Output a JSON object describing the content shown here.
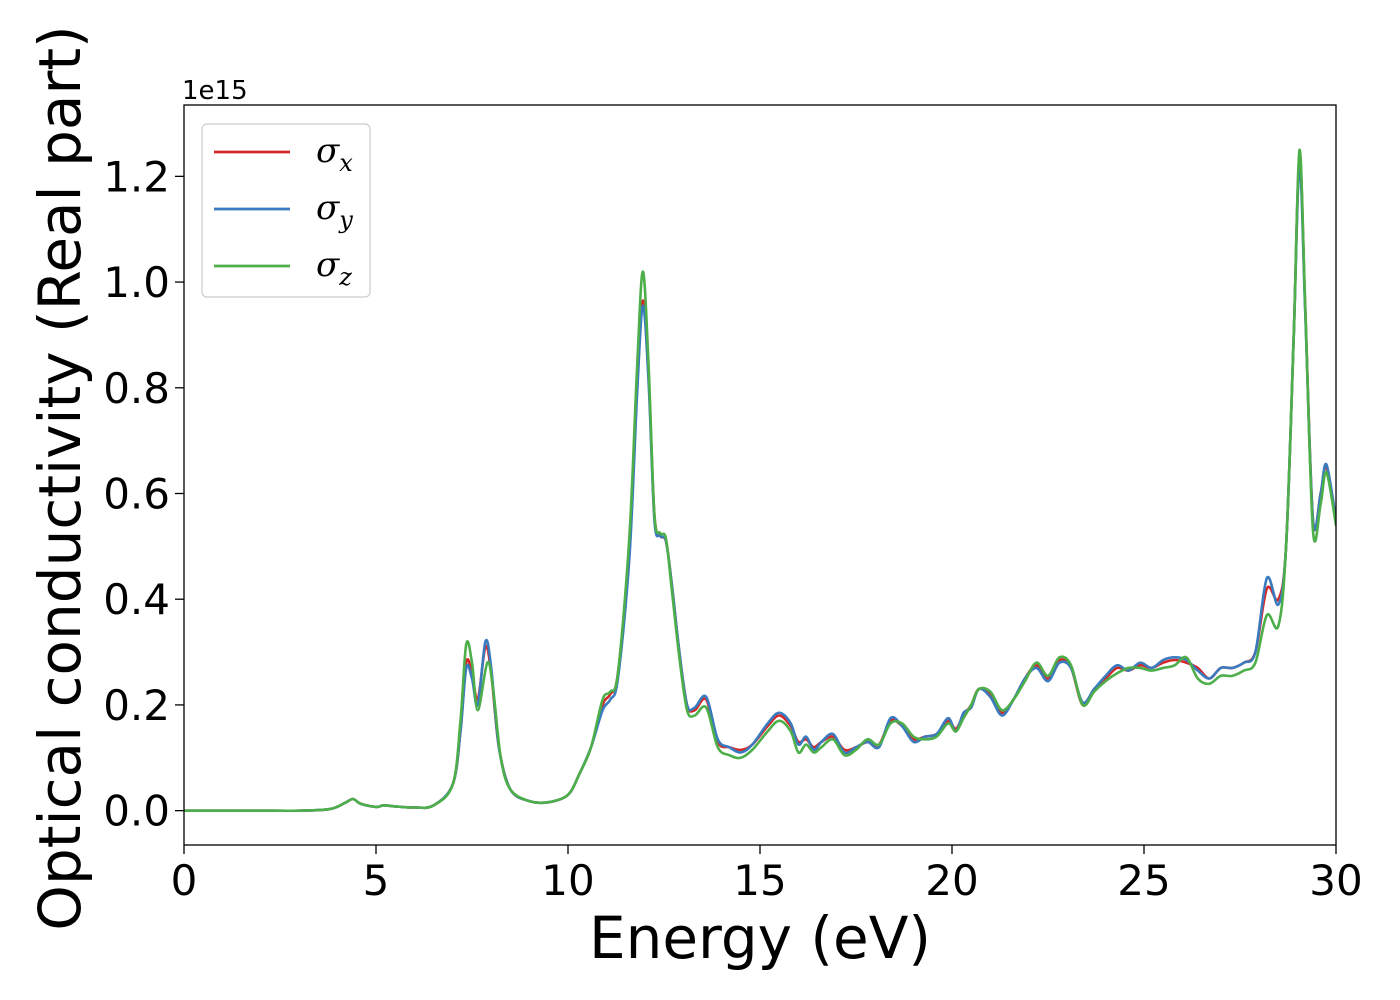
{
  "chart_data": {
    "type": "line",
    "xlabel": "Energy (eV)",
    "ylabel": "Optical conductivity (Real part)",
    "y_offset_label": "1e15",
    "xlim": [
      0,
      30
    ],
    "ylim": [
      -0.065,
      1.335
    ],
    "x_ticks": [
      0,
      5,
      10,
      15,
      20,
      25,
      30
    ],
    "x_tick_labels": [
      "0",
      "5",
      "10",
      "15",
      "20",
      "25",
      "30"
    ],
    "y_ticks": [
      0.0,
      0.2,
      0.4,
      0.6,
      0.8,
      1.0,
      1.2
    ],
    "y_tick_labels": [
      "0.0",
      "0.2",
      "0.4",
      "0.6",
      "0.8",
      "1.0",
      "1.2"
    ],
    "grid": false,
    "legend_position": "top-left",
    "series": [
      {
        "name": "σx",
        "symbol": "σ",
        "subscript": "x",
        "color": "#d62728",
        "x": [
          0,
          0.5,
          1,
          2,
          3,
          3.8,
          4.2,
          4.4,
          4.6,
          5,
          5.2,
          5.5,
          6,
          6.5,
          7,
          7.2,
          7.35,
          7.5,
          7.65,
          7.85,
          8,
          8.2,
          8.5,
          9,
          9.5,
          10,
          10.3,
          10.6,
          10.9,
          11.1,
          11.3,
          11.6,
          11.8,
          11.95,
          12.1,
          12.25,
          12.4,
          12.55,
          12.7,
          12.9,
          13.1,
          13.3,
          13.6,
          13.9,
          14.2,
          14.5,
          14.8,
          15.2,
          15.5,
          15.8,
          16.0,
          16.2,
          16.4,
          16.6,
          16.9,
          17.2,
          17.5,
          17.8,
          18.1,
          18.4,
          18.7,
          19.0,
          19.3,
          19.6,
          19.9,
          20.1,
          20.3,
          20.5,
          20.7,
          21.0,
          21.3,
          21.6,
          21.9,
          22.2,
          22.5,
          22.8,
          23.1,
          23.4,
          23.7,
          24.0,
          24.3,
          24.6,
          24.9,
          25.2,
          25.5,
          25.8,
          26.1,
          26.4,
          26.7,
          27.0,
          27.3,
          27.6,
          27.9,
          28.2,
          28.5,
          28.7,
          28.9,
          29.05,
          29.2,
          29.4,
          29.6,
          29.75,
          30
        ],
        "values": [
          0.0,
          0.0,
          0.0,
          0.0,
          0.0,
          0.003,
          0.015,
          0.022,
          0.013,
          0.007,
          0.01,
          0.008,
          0.006,
          0.01,
          0.05,
          0.15,
          0.28,
          0.26,
          0.21,
          0.31,
          0.26,
          0.12,
          0.04,
          0.018,
          0.016,
          0.03,
          0.07,
          0.12,
          0.2,
          0.22,
          0.26,
          0.5,
          0.8,
          0.965,
          0.82,
          0.56,
          0.52,
          0.51,
          0.43,
          0.3,
          0.2,
          0.19,
          0.21,
          0.13,
          0.12,
          0.115,
          0.125,
          0.16,
          0.18,
          0.16,
          0.13,
          0.135,
          0.12,
          0.13,
          0.14,
          0.115,
          0.12,
          0.13,
          0.125,
          0.17,
          0.16,
          0.135,
          0.14,
          0.145,
          0.17,
          0.155,
          0.18,
          0.2,
          0.23,
          0.22,
          0.185,
          0.21,
          0.25,
          0.275,
          0.25,
          0.285,
          0.27,
          0.2,
          0.23,
          0.25,
          0.27,
          0.265,
          0.275,
          0.27,
          0.28,
          0.285,
          0.28,
          0.27,
          0.25,
          0.27,
          0.27,
          0.28,
          0.3,
          0.42,
          0.4,
          0.5,
          0.9,
          1.24,
          0.95,
          0.55,
          0.6,
          0.65,
          0.55
        ]
      },
      {
        "name": "σy",
        "symbol": "σ",
        "subscript": "y",
        "color": "#3a7bbf",
        "x": [
          0,
          0.5,
          1,
          2,
          3,
          3.8,
          4.2,
          4.4,
          4.6,
          5,
          5.2,
          5.5,
          6,
          6.5,
          7,
          7.2,
          7.35,
          7.5,
          7.65,
          7.85,
          8,
          8.2,
          8.5,
          9,
          9.5,
          10,
          10.3,
          10.6,
          10.9,
          11.1,
          11.3,
          11.6,
          11.8,
          11.95,
          12.1,
          12.25,
          12.4,
          12.55,
          12.7,
          12.9,
          13.1,
          13.3,
          13.6,
          13.9,
          14.2,
          14.5,
          14.8,
          15.2,
          15.5,
          15.8,
          16.0,
          16.2,
          16.4,
          16.6,
          16.9,
          17.2,
          17.5,
          17.8,
          18.1,
          18.4,
          18.7,
          19.0,
          19.3,
          19.6,
          19.9,
          20.1,
          20.3,
          20.5,
          20.7,
          21.0,
          21.3,
          21.6,
          21.9,
          22.2,
          22.5,
          22.8,
          23.1,
          23.4,
          23.7,
          24.0,
          24.3,
          24.6,
          24.9,
          25.2,
          25.5,
          25.8,
          26.1,
          26.4,
          26.7,
          27.0,
          27.3,
          27.6,
          27.9,
          28.2,
          28.5,
          28.7,
          28.9,
          29.05,
          29.2,
          29.4,
          29.6,
          29.75,
          30
        ],
        "values": [
          0.0,
          0.0,
          0.0,
          0.0,
          0.0,
          0.003,
          0.015,
          0.022,
          0.013,
          0.007,
          0.01,
          0.008,
          0.006,
          0.01,
          0.05,
          0.15,
          0.27,
          0.25,
          0.2,
          0.32,
          0.27,
          0.12,
          0.04,
          0.018,
          0.016,
          0.03,
          0.07,
          0.12,
          0.19,
          0.21,
          0.25,
          0.48,
          0.79,
          0.955,
          0.81,
          0.55,
          0.52,
          0.51,
          0.43,
          0.3,
          0.2,
          0.195,
          0.215,
          0.135,
          0.12,
          0.11,
          0.125,
          0.165,
          0.185,
          0.165,
          0.125,
          0.14,
          0.115,
          0.13,
          0.145,
          0.11,
          0.12,
          0.13,
          0.12,
          0.175,
          0.16,
          0.13,
          0.14,
          0.145,
          0.175,
          0.15,
          0.185,
          0.195,
          0.23,
          0.215,
          0.18,
          0.21,
          0.25,
          0.27,
          0.245,
          0.28,
          0.27,
          0.205,
          0.23,
          0.255,
          0.275,
          0.265,
          0.28,
          0.27,
          0.285,
          0.29,
          0.285,
          0.265,
          0.25,
          0.27,
          0.27,
          0.28,
          0.3,
          0.44,
          0.39,
          0.5,
          0.9,
          1.22,
          0.94,
          0.55,
          0.6,
          0.655,
          0.55
        ]
      },
      {
        "name": "σz",
        "symbol": "σ",
        "subscript": "z",
        "color": "#4daf4a",
        "x": [
          0,
          0.5,
          1,
          2,
          3,
          3.8,
          4.2,
          4.4,
          4.6,
          5,
          5.2,
          5.5,
          6,
          6.5,
          7,
          7.2,
          7.35,
          7.5,
          7.65,
          7.9,
          8.05,
          8.25,
          8.5,
          9,
          9.5,
          10,
          10.3,
          10.6,
          10.9,
          11.1,
          11.3,
          11.6,
          11.8,
          11.95,
          12.1,
          12.25,
          12.4,
          12.55,
          12.7,
          12.9,
          13.1,
          13.3,
          13.6,
          13.9,
          14.2,
          14.5,
          14.8,
          15.2,
          15.5,
          15.8,
          16.0,
          16.2,
          16.4,
          16.6,
          16.9,
          17.2,
          17.5,
          17.8,
          18.1,
          18.4,
          18.7,
          19.0,
          19.3,
          19.6,
          19.9,
          20.1,
          20.3,
          20.5,
          20.7,
          21.0,
          21.3,
          21.6,
          21.9,
          22.2,
          22.5,
          22.8,
          23.1,
          23.4,
          23.7,
          24.0,
          24.3,
          24.6,
          24.9,
          25.2,
          25.5,
          25.8,
          26.1,
          26.4,
          26.7,
          27.0,
          27.3,
          27.6,
          27.9,
          28.2,
          28.5,
          28.7,
          28.9,
          29.05,
          29.2,
          29.4,
          29.6,
          29.75,
          30
        ],
        "values": [
          0.0,
          0.0,
          0.0,
          0.0,
          0.0,
          0.003,
          0.015,
          0.022,
          0.013,
          0.007,
          0.01,
          0.008,
          0.006,
          0.01,
          0.05,
          0.17,
          0.315,
          0.28,
          0.19,
          0.28,
          0.23,
          0.1,
          0.04,
          0.018,
          0.016,
          0.03,
          0.07,
          0.12,
          0.21,
          0.225,
          0.26,
          0.52,
          0.84,
          1.02,
          0.84,
          0.56,
          0.525,
          0.515,
          0.42,
          0.29,
          0.19,
          0.18,
          0.195,
          0.12,
          0.105,
          0.1,
          0.115,
          0.15,
          0.17,
          0.15,
          0.11,
          0.125,
          0.11,
          0.12,
          0.135,
          0.105,
          0.115,
          0.135,
          0.125,
          0.165,
          0.165,
          0.14,
          0.135,
          0.14,
          0.165,
          0.15,
          0.175,
          0.2,
          0.23,
          0.225,
          0.19,
          0.21,
          0.245,
          0.28,
          0.255,
          0.29,
          0.275,
          0.2,
          0.225,
          0.245,
          0.26,
          0.27,
          0.27,
          0.265,
          0.27,
          0.275,
          0.29,
          0.25,
          0.24,
          0.255,
          0.255,
          0.265,
          0.28,
          0.37,
          0.35,
          0.5,
          0.9,
          1.25,
          0.95,
          0.53,
          0.58,
          0.64,
          0.54
        ]
      }
    ]
  }
}
